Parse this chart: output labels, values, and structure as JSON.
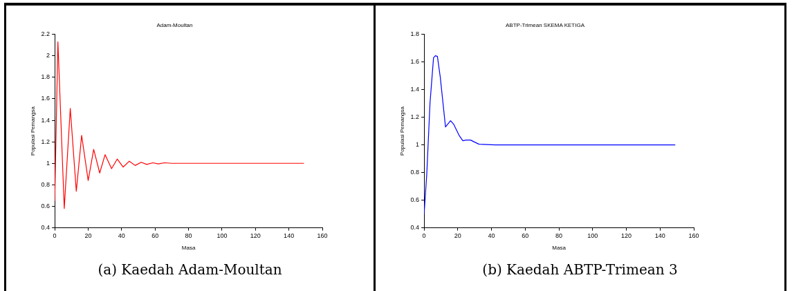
{
  "chart_data": [
    {
      "type": "line",
      "title": "Adam-Moultan",
      "xlabel": "Masa",
      "ylabel": "Populasi Pemangsa",
      "annotations": [
        "(a)  Kaedah Adam-Moultan"
      ],
      "xlim": [
        0,
        160
      ],
      "xticks": [
        0,
        20,
        40,
        60,
        80,
        100,
        120,
        140,
        160
      ],
      "ylim": [
        0.4,
        2.2
      ],
      "yticks": [
        0.4,
        0.6,
        0.8,
        1,
        1.2,
        1.4,
        1.6,
        1.8,
        2,
        2.2
      ],
      "grid": false,
      "legend": false,
      "marker": "none",
      "line_style": "solid",
      "series": [
        {
          "color": "#ff0000",
          "x": [
            0,
            1.9,
            5.7,
            9.3,
            12.9,
            16.1,
            20,
            23.3,
            26.9,
            30.1,
            34,
            37.4,
            40.9,
            44.6,
            48.1,
            51.7,
            55,
            58.7,
            62,
            65.6,
            70,
            149
          ],
          "values": [
            0.65,
            2.13,
            0.58,
            1.51,
            0.74,
            1.26,
            0.84,
            1.13,
            0.91,
            1.08,
            0.95,
            1.04,
            0.965,
            1.02,
            0.98,
            1.01,
            0.99,
            1.005,
            0.995,
            1.005,
            1,
            1
          ]
        }
      ]
    },
    {
      "type": "line",
      "title": "ABTP-Trimean SKEMA KETIGA",
      "xlabel": "Masa",
      "ylabel": "Populasi Pemangsa",
      "annotations": [
        "(b)  Kaedah ABTP-Trimean 3"
      ],
      "xlim": [
        0,
        160
      ],
      "xticks": [
        0,
        20,
        40,
        60,
        80,
        100,
        120,
        140,
        160
      ],
      "ylim": [
        0.4,
        1.8
      ],
      "yticks": [
        0.4,
        0.6,
        0.8,
        1,
        1.2,
        1.4,
        1.6,
        1.8
      ],
      "grid": false,
      "legend": false,
      "marker": "none",
      "line_style": "solid",
      "series": [
        {
          "color": "#0000ff",
          "x": [
            0,
            1.6,
            3.5,
            5.6,
            6.7,
            7.9,
            9.6,
            12.7,
            15.7,
            17.5,
            20.7,
            23,
            24.9,
            27.6,
            30,
            32.6,
            42,
            149
          ],
          "values": [
            0.5,
            0.79,
            1.3,
            1.63,
            1.645,
            1.64,
            1.49,
            1.13,
            1.175,
            1.15,
            1.07,
            1.03,
            1.035,
            1.035,
            1.02,
            1.005,
            1,
            1
          ]
        }
      ]
    }
  ]
}
